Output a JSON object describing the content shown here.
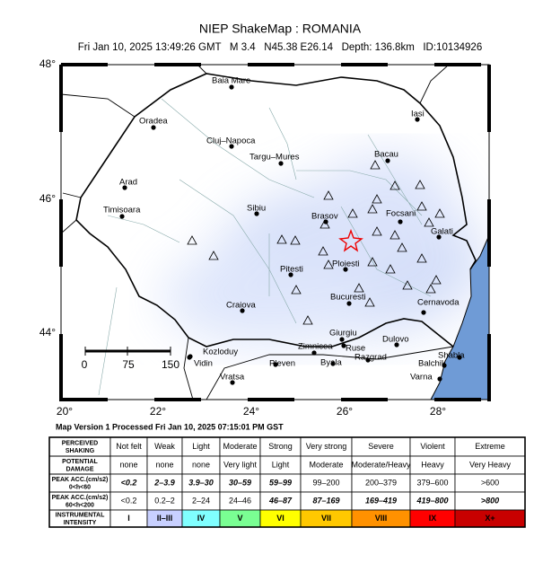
{
  "header": {
    "title": "NIEP ShakeMap : ROMANIA",
    "subtitle": "Fri Jan 10, 2025 13:49:26 GMT   M 3.4   N45.38 E26.14   Depth: 136.8km   ID:10134926"
  },
  "map": {
    "lat_labels": [
      "48°",
      "46°",
      "44°"
    ],
    "lon_labels": [
      "20°",
      "22°",
      "24°",
      "26°",
      "28°"
    ],
    "cities": [
      "Baia Mare",
      "Oradea",
      "Cluj–Napoca",
      "Targu–Mures",
      "Iasi",
      "Bacau",
      "Arad",
      "Sibiu",
      "Brasov",
      "Focsani",
      "Timisoara",
      "Galati",
      "Pitesti",
      "Ploiesti",
      "Bucuresti",
      "Cernavoda",
      "Craiova",
      "Giurgiu",
      "Zimnicea",
      "Ruse",
      "Dulovo",
      "Kozloduy",
      "Vidin",
      "Shabla",
      "Pleven",
      "Byala",
      "Razgrad",
      "Balchik",
      "Vratsa",
      "Varna"
    ],
    "scale_labels": [
      "0",
      "75",
      "150"
    ]
  },
  "footer": "Map Version 1 Processed Fri Jan 10, 2025 07:15:01 PM GST",
  "legend": {
    "row_headers": [
      [
        "PERCEIVED",
        "SHAKING"
      ],
      [
        "POTENTIAL",
        "DAMAGE"
      ],
      [
        "PEAK ACC.(cm/s2)",
        "0<h<60"
      ],
      [
        "PEAK ACC.(cm/s2)",
        "60<h<200"
      ],
      [
        "INSTRUMENTAL",
        "INTENSITY"
      ]
    ],
    "rows": [
      [
        "Not felt",
        "Weak",
        "Light",
        "Moderate",
        "Strong",
        "Very strong",
        "Severe",
        "Violent",
        "Extreme"
      ],
      [
        "none",
        "none",
        "none",
        "Very light",
        "Light",
        "Moderate",
        "Moderate/Heavy",
        "Heavy",
        "Very Heavy"
      ],
      [
        "<0.2",
        "2–3.9",
        "3.9–30",
        "30–59",
        "59–99",
        "99–200",
        "200–379",
        "379–600",
        ">600"
      ],
      [
        "<0.2",
        "0.2–2",
        "2–24",
        "24–46",
        "46–87",
        "87–169",
        "169–419",
        "419–800",
        ">800"
      ],
      [
        "I",
        "II–III",
        "IV",
        "V",
        "VI",
        "VII",
        "VIII",
        "IX",
        "X+"
      ]
    ]
  }
}
